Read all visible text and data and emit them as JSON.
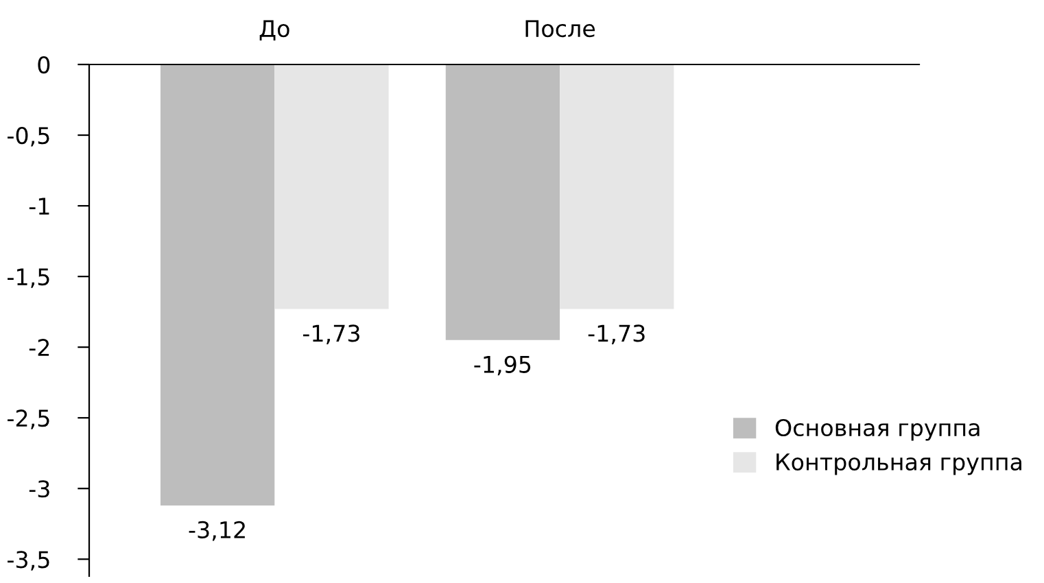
{
  "chart_data": {
    "type": "bar",
    "categories": [
      "До",
      "После"
    ],
    "series": [
      {
        "name": "Основная группа",
        "color": "#bdbdbd",
        "values": [
          -3.12,
          -1.95
        ],
        "value_labels": [
          "-3,12",
          "-1,95"
        ]
      },
      {
        "name": "Контрольная группа",
        "color": "#e6e6e6",
        "values": [
          -1.73,
          -1.73
        ],
        "value_labels": [
          "-1,73",
          "-1,73"
        ]
      }
    ],
    "ylim": [
      -3.62,
      0
    ],
    "yticks": [
      0,
      {
        "value": -0.5,
        "label": "-0,5"
      },
      {
        "value": -1,
        "label": "-1"
      },
      {
        "value": -1.5,
        "label": "-1,5"
      },
      {
        "value": -2,
        "label": "-2"
      },
      {
        "value": -2.5,
        "label": "-2,5"
      },
      {
        "value": -3,
        "label": "-3"
      },
      {
        "value": -3.5,
        "label": "-3,5"
      }
    ],
    "grid": false,
    "legend": "bottom right"
  }
}
